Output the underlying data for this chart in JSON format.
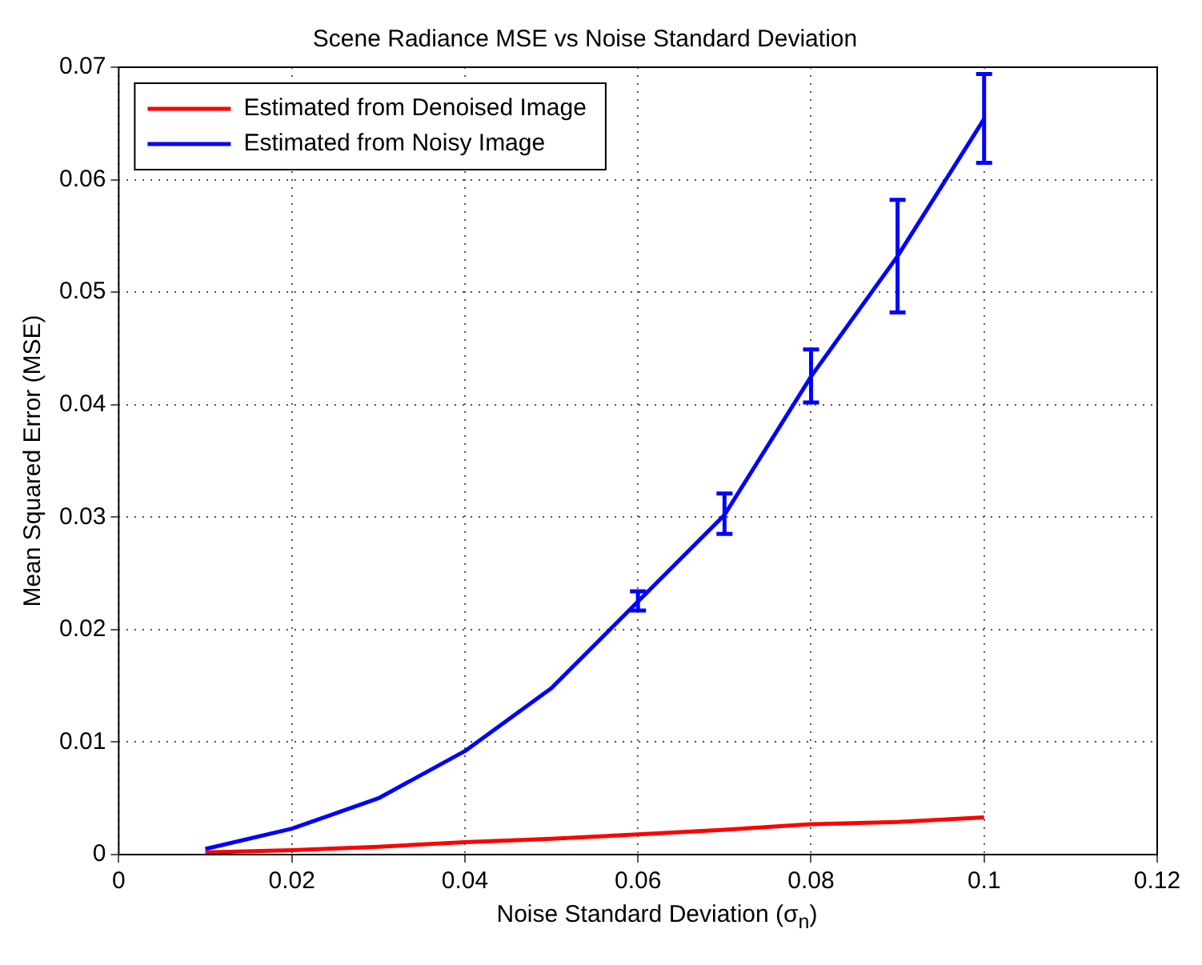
{
  "chart_data": {
    "type": "line",
    "title": "Scene Radiance MSE vs Noise Standard Deviation",
    "xlabel": "Noise Standard Deviation (σ$_{n}$)",
    "ylabel": "Mean Squared Error (MSE)",
    "x": [
      0.01,
      0.02,
      0.03,
      0.04,
      0.05,
      0.06,
      0.07,
      0.08,
      0.09,
      0.1
    ],
    "series": [
      {
        "name": "Estimated from Denoised Image",
        "color": "#ff0000",
        "values": [
          0.0002,
          0.0004,
          0.0007,
          0.0011,
          0.0014,
          0.0018,
          0.0022,
          0.0027,
          0.0029,
          0.0033
        ]
      },
      {
        "name": "Estimated from Noisy Image",
        "color": "#0000ff",
        "values": [
          0.0005,
          0.0023,
          0.005,
          0.0092,
          0.0148,
          0.0225,
          0.0302,
          0.0425,
          0.0532,
          0.0654
        ],
        "errors": [
          null,
          null,
          null,
          null,
          null,
          [
            0.0217,
            0.0234
          ],
          [
            0.0285,
            0.0321
          ],
          [
            0.0402,
            0.0449
          ],
          [
            0.0482,
            0.0582
          ],
          [
            0.0615,
            0.0694
          ]
        ]
      }
    ],
    "xlim": [
      0,
      0.12
    ],
    "xticks": [
      0,
      0.02,
      0.04,
      0.06,
      0.08,
      0.1,
      0.12
    ],
    "ylim": [
      0,
      0.07
    ],
    "yticks": [
      0,
      0.01,
      0.02,
      0.03,
      0.04,
      0.05,
      0.06,
      0.07
    ],
    "grid": true,
    "legend": "top left",
    "line_style": "solid",
    "marker": "none"
  }
}
